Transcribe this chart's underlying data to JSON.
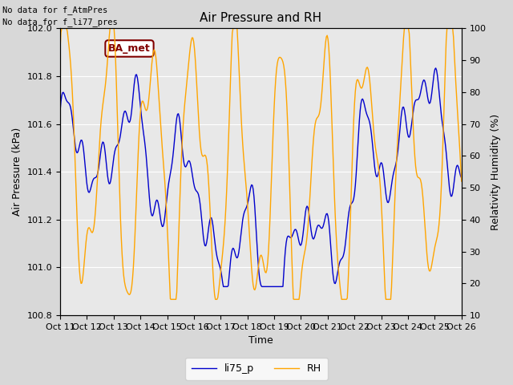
{
  "title": "Air Pressure and RH",
  "xlabel": "Time",
  "ylabel_left": "Air Pressure (kPa)",
  "ylabel_right": "Relativity Humidity (%)",
  "text_topleft_line1": "No data for f_AtmPres",
  "text_topleft_line2": "No data for f_li77_pres",
  "annotation_label": "BA_met",
  "ylim_left": [
    100.8,
    102.0
  ],
  "ylim_right": [
    10,
    100
  ],
  "yticks_left": [
    100.8,
    101.0,
    101.2,
    101.4,
    101.6,
    101.8,
    102.0
  ],
  "yticks_right": [
    10,
    20,
    30,
    40,
    50,
    60,
    70,
    80,
    90,
    100
  ],
  "color_pressure": "#0000cc",
  "color_rh": "#ffa500",
  "legend_labels": [
    "li75_p",
    "RH"
  ],
  "fig_facecolor": "#d8d8d8",
  "axes_facecolor": "#e8e8e8",
  "grid_color": "white",
  "annotation_box_facecolor": "white",
  "annotation_box_edgecolor": "#800000",
  "annotation_text_color": "#800000",
  "title_fontsize": 11,
  "axis_fontsize": 9,
  "tick_fontsize": 8
}
